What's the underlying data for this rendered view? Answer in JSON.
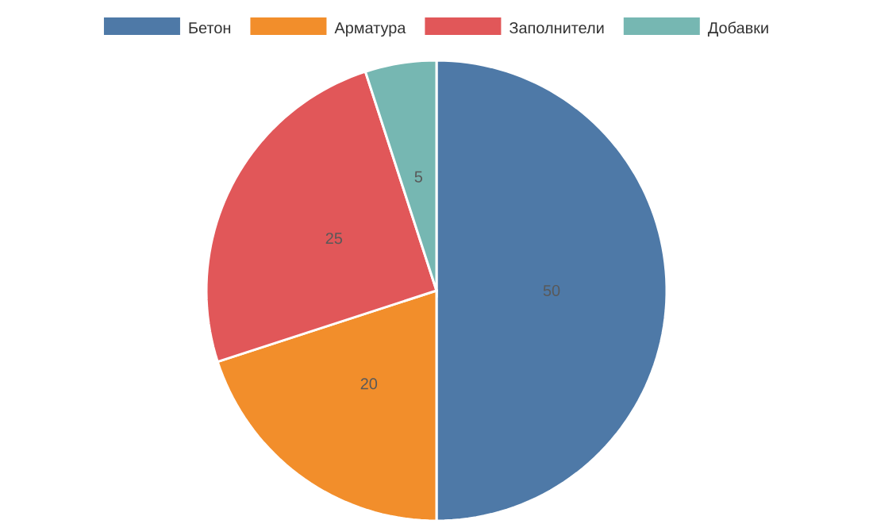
{
  "chart_data": {
    "type": "pie",
    "categories": [
      "Бетон",
      "Арматура",
      "Заполнители",
      "Добавки"
    ],
    "values": [
      50,
      20,
      25,
      5
    ],
    "colors": [
      "#4e79a7",
      "#f28e2b",
      "#e15759",
      "#76b7b2"
    ],
    "data_labels": true,
    "legend": "top"
  }
}
